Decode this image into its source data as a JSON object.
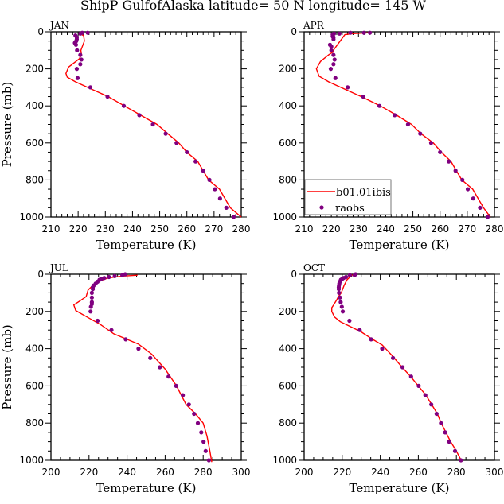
{
  "chart_data": {
    "title": "ShipP GulfofAlaska  latitude= 50 N longitude= 145 W",
    "legend": {
      "placement": "bottom-left of APR panel",
      "entries": [
        {
          "label": "b01.01ibis",
          "type": "line",
          "color": "#ff0000"
        },
        {
          "label": "raobs",
          "type": "marker",
          "color": "#800080"
        }
      ]
    },
    "panels": [
      {
        "name": "JAN",
        "type": "line",
        "xlabel": "Temperature (K)",
        "ylabel": "Pressure (mb)",
        "xlim": [
          210,
          280
        ],
        "ylim": [
          1000,
          0
        ],
        "xticks": [
          210,
          220,
          230,
          240,
          250,
          260,
          270,
          280
        ],
        "yticks": [
          0,
          200,
          400,
          600,
          800,
          1000
        ],
        "series": [
          {
            "name": "b01.01ibis",
            "color": "#ff0000",
            "x": [
              220.5,
              222,
              222.3,
              221,
              221.2,
              220.5,
              216.5,
              215.5,
              216,
              219,
              225,
              231,
              237,
              243,
              249,
              253,
              257,
              260,
              264,
              268,
              272,
              276,
              280
            ],
            "y": [
              10,
              20,
              50,
              100,
              120,
              145,
              190,
              225,
              245,
              270,
              310,
              350,
              400,
              450,
              500,
              550,
              600,
              650,
              700,
              800,
              850,
              950,
              1000
            ]
          },
          {
            "name": "raobs",
            "color": "#800080",
            "x": [
              223.5,
              221.5,
              220.8,
              219,
              219.5,
              219.5,
              219.3,
              218.8,
              219.2,
              219.6,
              220.8,
              221.2,
              220.8,
              219.5,
              219.8,
              224.5,
              230.8,
              236.8,
              242.5,
              247.5,
              252.2,
              256.2,
              260,
              263.2,
              266,
              268.3,
              270.3,
              272.2,
              274.5,
              277.2
            ],
            "y": [
              5,
              5,
              10,
              20,
              30,
              40,
              50,
              60,
              70,
              100,
              125,
              150,
              175,
              200,
              250,
              300,
              350,
              400,
              450,
              500,
              550,
              600,
              650,
              700,
              750,
              800,
              850,
              900,
              950,
              1000
            ]
          }
        ]
      },
      {
        "name": "APR",
        "type": "line",
        "xlabel": "Temperature (K)",
        "ylabel": "",
        "xlim": [
          210,
          280
        ],
        "ylim": [
          1000,
          0
        ],
        "xticks": [
          210,
          220,
          230,
          240,
          250,
          260,
          270,
          280
        ],
        "yticks": [
          0,
          200,
          400,
          600,
          800,
          1000
        ],
        "series": [
          {
            "name": "b01.01ibis",
            "color": "#ff0000",
            "x": [
              234,
              228,
              225,
              224,
              222.5,
              221,
              220.5,
              219,
              216,
              214.5,
              215.5,
              219,
              225,
              231,
              238,
              244,
              249.5,
              253,
              257.5,
              260.5,
              264,
              268,
              272,
              276,
              278.5
            ],
            "y": [
              5,
              10,
              15,
              35,
              65,
              95,
              110,
              125,
              160,
              200,
              240,
              270,
              310,
              350,
              400,
              450,
              500,
              550,
              600,
              650,
              700,
              800,
              850,
              950,
              1000
            ]
          },
          {
            "name": "raobs",
            "color": "#800080",
            "x": [
              234.2,
              232,
              227,
              223,
              221,
              220.5,
              220.5,
              220.8,
              220.8,
              219.5,
              220,
              220,
              220.8,
              221.2,
              220.8,
              219.8,
              221.5,
              226,
              231.7,
              237.7,
              243.3,
              248.2,
              252.7,
              256.7,
              260,
              263.2,
              265.7,
              268.2,
              270.2,
              272.2,
              274.7,
              277.5
            ],
            "y": [
              5,
              5,
              5,
              10,
              10,
              15,
              25,
              30,
              40,
              70,
              80,
              100,
              125,
              150,
              175,
              200,
              250,
              300,
              350,
              400,
              450,
              500,
              550,
              600,
              650,
              700,
              750,
              800,
              850,
              900,
              950,
              1000
            ]
          }
        ]
      },
      {
        "name": "JUL",
        "type": "line",
        "xlabel": "Temperature (K)",
        "ylabel": "Pressure (mb)",
        "xlim": [
          200,
          300
        ],
        "ylim": [
          1000,
          0
        ],
        "xticks": [
          200,
          220,
          240,
          260,
          280,
          300
        ],
        "yticks": [
          0,
          200,
          400,
          600,
          800,
          1000
        ],
        "series": [
          {
            "name": "b01.01ibis",
            "color": "#ff0000",
            "x": [
              245.5,
              238,
              230,
              226,
              223,
              221,
              219.5,
              218.5,
              215,
              212,
              213,
              219,
              226,
              233,
              240,
              246,
              253,
              260,
              266,
              271,
              276,
              280,
              282,
              283.5,
              284.5
            ],
            "y": [
              5,
              10,
              20,
              35,
              50,
              70,
              85,
              120,
              145,
              165,
              195,
              230,
              270,
              320,
              350,
              375,
              430,
              510,
              600,
              700,
              750,
              800,
              870,
              950,
              1010
            ]
          },
          {
            "name": "raobs",
            "color": "#800080",
            "x": [
              239,
              237.5,
              233.5,
              230.5,
              228,
              226.5,
              225.5,
              224.5,
              223.5,
              222.5,
              222,
              222,
              221.5,
              221.5,
              221.5,
              221.5,
              221,
              220.8,
              224.5,
              231.8,
              239.3,
              246,
              252.2,
              257.2,
              261.8,
              265.8,
              269.3,
              272.5,
              275.2,
              277.2,
              279,
              280.2,
              281.3,
              283
            ],
            "y": [
              0,
              5,
              10,
              15,
              20,
              25,
              30,
              40,
              50,
              60,
              70,
              80,
              100,
              125,
              150,
              160,
              175,
              200,
              250,
              300,
              350,
              400,
              450,
              500,
              550,
              600,
              650,
              700,
              750,
              800,
              850,
              900,
              950,
              1000
            ]
          }
        ]
      },
      {
        "name": "OCT",
        "type": "line",
        "xlabel": "Temperature (K)",
        "ylabel": "",
        "xlim": [
          200,
          300
        ],
        "ylim": [
          1000,
          0
        ],
        "xticks": [
          200,
          220,
          240,
          260,
          280,
          300
        ],
        "yticks": [
          0,
          200,
          400,
          600,
          800,
          1000
        ],
        "series": [
          {
            "name": "b01.01ibis",
            "color": "#ff0000",
            "x": [
              227,
              225,
              222.5,
              221,
              219.5,
              218,
              217,
              215.5,
              214.5,
              214.5,
              216,
              219,
              224,
              230,
              236,
              241,
              246.5,
              251.5,
              256,
              260,
              264,
              267,
              270,
              272,
              274.5,
              277,
              280,
              282.5
            ],
            "y": [
              0,
              5,
              30,
              60,
              100,
              120,
              140,
              165,
              180,
              200,
              230,
              255,
              280,
              310,
              350,
              380,
              440,
              500,
              550,
              600,
              650,
              700,
              750,
              800,
              850,
              900,
              950,
              1000
            ]
          },
          {
            "name": "raobs",
            "color": "#800080",
            "x": [
              227,
              226.5,
              224,
              222,
              220.8,
              220,
              219.3,
              218.8,
              218.5,
              218.3,
              218.2,
              218.2,
              218.3,
              218.8,
              219.2,
              219.8,
              220.3,
              223.8,
              229.2,
              235.2,
              241,
              246.7,
              251.7,
              256.2,
              260.2,
              263.7,
              266.8,
              269.6,
              271.9,
              274.1,
              276.2,
              279.3,
              282.4
            ],
            "y": [
              0,
              5,
              5,
              15,
              20,
              25,
              30,
              40,
              50,
              60,
              70,
              80,
              100,
              125,
              150,
              175,
              200,
              250,
              300,
              350,
              400,
              450,
              500,
              550,
              600,
              650,
              700,
              750,
              800,
              850,
              900,
              950,
              1000
            ]
          }
        ]
      }
    ]
  }
}
